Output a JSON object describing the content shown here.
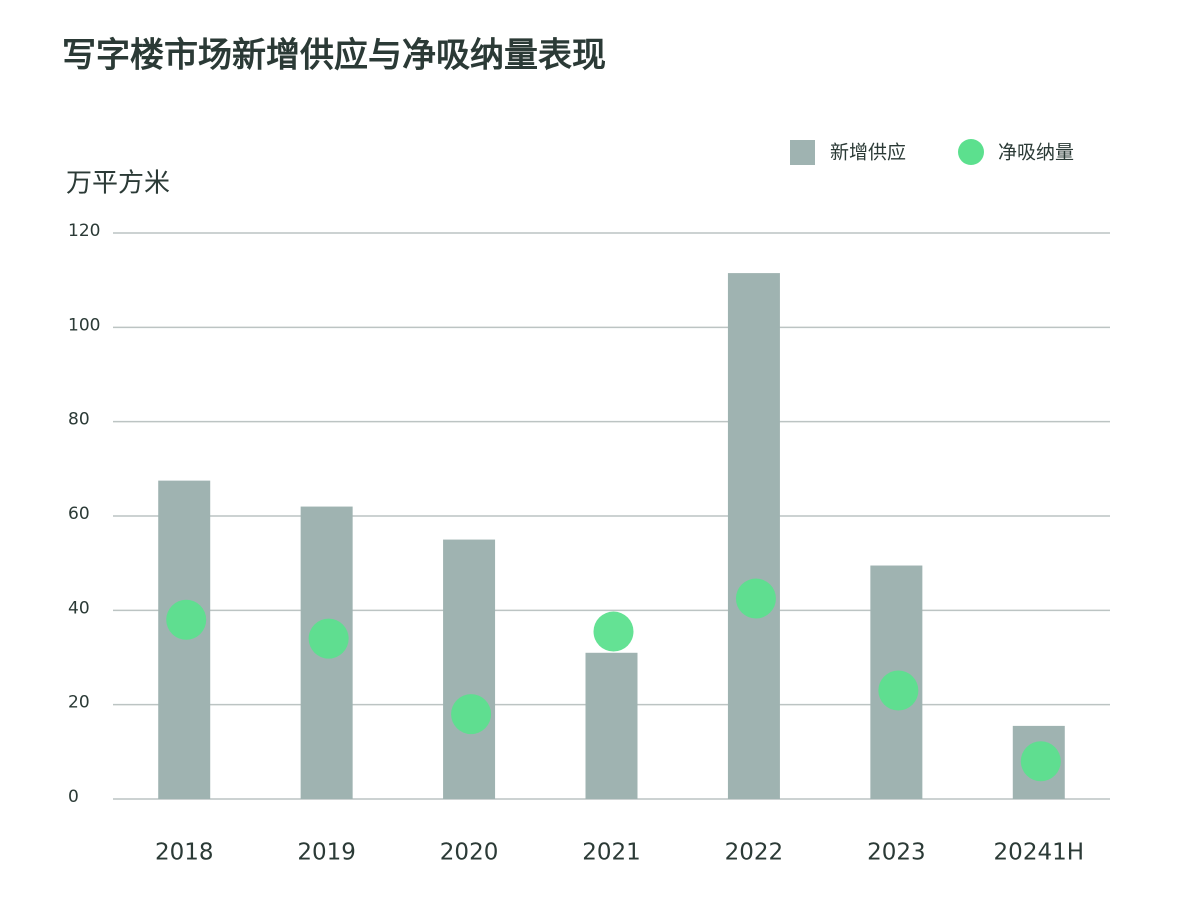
{
  "chart_data": {
    "type": "combo",
    "title": "写字楼市场新增供应与净吸纳量表现",
    "y_label": "万平方米",
    "categories": [
      "2018",
      "2019",
      "2020",
      "2021",
      "2022",
      "2023",
      "20241H"
    ],
    "series": [
      {
        "name": "新增供应",
        "type": "bar",
        "color": "#9fb3b1",
        "values": [
          67.5,
          62,
          55,
          31,
          111.5,
          49.5,
          15.5
        ]
      },
      {
        "name": "净吸纳量",
        "type": "scatter",
        "color": "#5ce08e",
        "values": [
          38,
          34,
          18,
          35.5,
          42.5,
          23,
          8
        ]
      }
    ],
    "ylim": [
      0,
      120
    ],
    "yticks": [
      0,
      20,
      40,
      60,
      80,
      100,
      120
    ],
    "grid": true,
    "legend": "top-right"
  }
}
